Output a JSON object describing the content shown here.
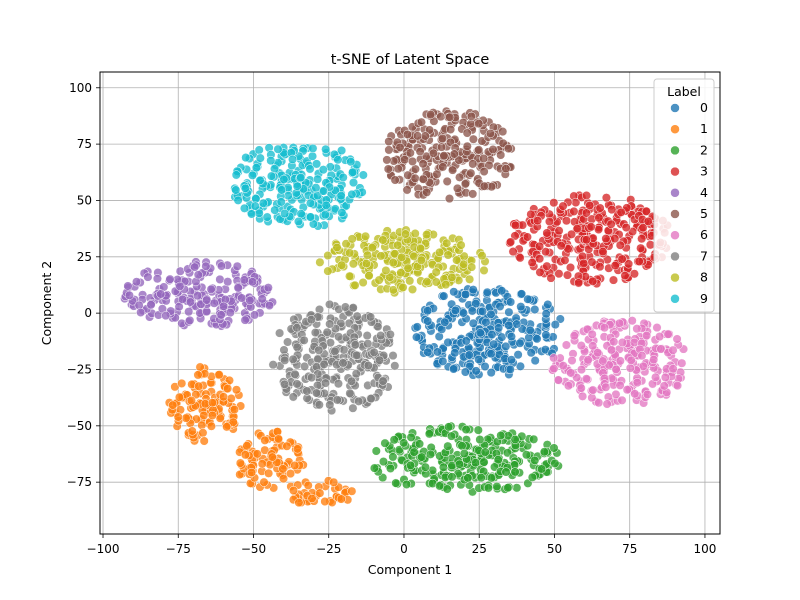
{
  "chart_data": {
    "type": "scatter",
    "title": "t-SNE of Latent Space",
    "xlabel": "Component 1",
    "ylabel": "Component 2",
    "xlim": [
      -101,
      105
    ],
    "ylim": [
      -98,
      107
    ],
    "x_ticks": [
      -100,
      -75,
      -50,
      -25,
      0,
      25,
      50,
      75,
      100
    ],
    "y_ticks": [
      -75,
      -50,
      -25,
      0,
      25,
      50,
      75,
      100
    ],
    "grid": true,
    "legend": {
      "title": "Label",
      "placement": "top-right"
    },
    "series": [
      {
        "name": "0",
        "color": "#1f77b4",
        "clusters": [
          {
            "cx": 28,
            "cy": -8,
            "rx": 25,
            "ry": 20
          }
        ]
      },
      {
        "name": "1",
        "color": "#ff7f0e",
        "clusters": [
          {
            "cx": -66,
            "cy": -40,
            "rx": 12,
            "ry": 18
          },
          {
            "cx": -45,
            "cy": -65,
            "rx": 12,
            "ry": 13
          },
          {
            "cx": -28,
            "cy": -80,
            "rx": 12,
            "ry": 6
          }
        ]
      },
      {
        "name": "2",
        "color": "#2ca02c",
        "clusters": [
          {
            "cx": 20,
            "cy": -65,
            "rx": 33,
            "ry": 15
          }
        ]
      },
      {
        "name": "3",
        "color": "#d62728",
        "clusters": [
          {
            "cx": 62,
            "cy": 33,
            "rx": 27,
            "ry": 20
          }
        ]
      },
      {
        "name": "4",
        "color": "#9467bd",
        "clusters": [
          {
            "cx": -68,
            "cy": 8,
            "rx": 25,
            "ry": 15
          }
        ]
      },
      {
        "name": "5",
        "color": "#8c564b",
        "clusters": [
          {
            "cx": 15,
            "cy": 70,
            "rx": 22,
            "ry": 20
          }
        ]
      },
      {
        "name": "6",
        "color": "#e377c2",
        "clusters": [
          {
            "cx": 72,
            "cy": -22,
            "rx": 23,
            "ry": 19
          }
        ]
      },
      {
        "name": "7",
        "color": "#7f7f7f",
        "clusters": [
          {
            "cx": -23,
            "cy": -20,
            "rx": 21,
            "ry": 24
          }
        ]
      },
      {
        "name": "8",
        "color": "#bcbd22",
        "clusters": [
          {
            "cx": 0,
            "cy": 23,
            "rx": 28,
            "ry": 14
          }
        ]
      },
      {
        "name": "9",
        "color": "#17becf",
        "clusters": [
          {
            "cx": -35,
            "cy": 57,
            "rx": 22,
            "ry": 20
          }
        ]
      }
    ]
  }
}
